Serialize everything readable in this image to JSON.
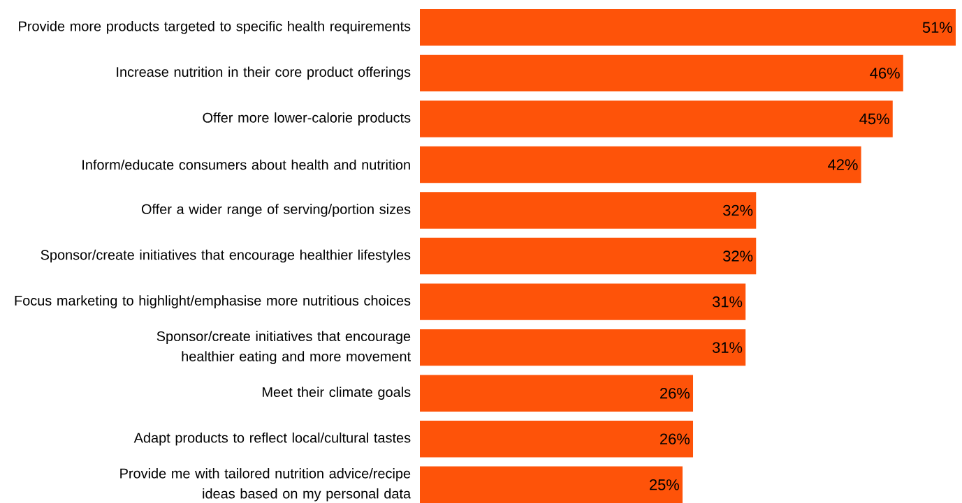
{
  "chart_data": {
    "type": "bar",
    "orientation": "horizontal",
    "categories": [
      "Provide more products targeted to specific health requirements",
      "Increase nutrition in their core product offerings",
      "Offer more lower-calorie products",
      "Inform/educate consumers about health and nutrition",
      "Offer a wider range of serving/portion sizes",
      "Sponsor/create initiatives that encourage healthier lifestyles",
      "Focus marketing to highlight/emphasise more nutritious choices",
      "Sponsor/create initiatives that encourage healthier eating and more movement",
      "Meet their climate goals",
      "Adapt products to reflect local/cultural tastes",
      "Provide me with tailored nutrition advice/recipe ideas based on my personal data"
    ],
    "values": [
      51,
      46,
      45,
      42,
      32,
      32,
      31,
      31,
      26,
      26,
      25
    ],
    "value_labels": [
      "51%",
      "46%",
      "45%",
      "42%",
      "32%",
      "32%",
      "31%",
      "31%",
      "26%",
      "26%",
      "25%"
    ],
    "color": "#fe5309"
  }
}
